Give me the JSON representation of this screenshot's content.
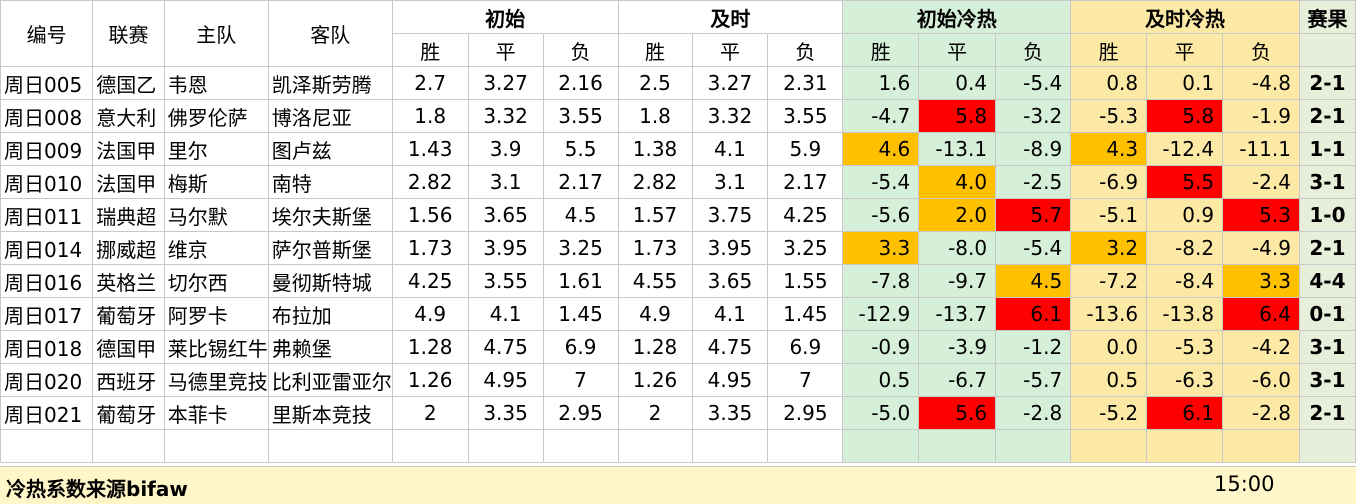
{
  "headers": {
    "id": "编号",
    "league": "联赛",
    "home": "主队",
    "away": "客队",
    "initial": "初始",
    "live": "及时",
    "initial_heat": "初始冷热",
    "live_heat": "及时冷热",
    "result": "赛果",
    "win": "胜",
    "draw": "平",
    "lose": "负"
  },
  "rows": [
    {
      "id": "周日005",
      "league": "德国乙",
      "home": "韦恩",
      "away": "凯泽斯劳腾",
      "i_w": "2.7",
      "i_d": "3.27",
      "i_l": "2.16",
      "l_w": "2.5",
      "l_d": "3.27",
      "l_l": "2.31",
      "ih_w": "1.6",
      "ih_d": "0.4",
      "ih_l": "-5.4",
      "lh_w": "0.8",
      "lh_d": "0.1",
      "lh_l": "-4.8",
      "result": "2-1"
    },
    {
      "id": "周日008",
      "league": "意大利",
      "home": "佛罗伦萨",
      "away": "博洛尼亚",
      "i_w": "1.8",
      "i_d": "3.32",
      "i_l": "3.55",
      "l_w": "1.8",
      "l_d": "3.32",
      "l_l": "3.55",
      "ih_w": "-4.7",
      "ih_d": "5.8",
      "ih_l": "-3.2",
      "lh_w": "-5.3",
      "lh_d": "5.8",
      "lh_l": "-1.9",
      "result": "2-1"
    },
    {
      "id": "周日009",
      "league": "法国甲",
      "home": "里尔",
      "away": "图卢兹",
      "i_w": "1.43",
      "i_d": "3.9",
      "i_l": "5.5",
      "l_w": "1.38",
      "l_d": "4.1",
      "l_l": "5.9",
      "ih_w": "4.6",
      "ih_d": "-13.1",
      "ih_l": "-8.9",
      "lh_w": "4.3",
      "lh_d": "-12.4",
      "lh_l": "-11.1",
      "result": "1-1"
    },
    {
      "id": "周日010",
      "league": "法国甲",
      "home": "梅斯",
      "away": "南特",
      "i_w": "2.82",
      "i_d": "3.1",
      "i_l": "2.17",
      "l_w": "2.82",
      "l_d": "3.1",
      "l_l": "2.17",
      "ih_w": "-5.4",
      "ih_d": "4.0",
      "ih_l": "-2.5",
      "lh_w": "-6.9",
      "lh_d": "5.5",
      "lh_l": "-2.4",
      "result": "3-1"
    },
    {
      "id": "周日011",
      "league": "瑞典超",
      "home": "马尔默",
      "away": "埃尔夫斯堡",
      "i_w": "1.56",
      "i_d": "3.65",
      "i_l": "4.5",
      "l_w": "1.57",
      "l_d": "3.75",
      "l_l": "4.25",
      "ih_w": "-5.6",
      "ih_d": "2.0",
      "ih_l": "5.7",
      "lh_w": "-5.1",
      "lh_d": "0.9",
      "lh_l": "5.3",
      "result": "1-0"
    },
    {
      "id": "周日014",
      "league": "挪威超",
      "home": "维京",
      "away": "萨尔普斯堡",
      "i_w": "1.73",
      "i_d": "3.95",
      "i_l": "3.25",
      "l_w": "1.73",
      "l_d": "3.95",
      "l_l": "3.25",
      "ih_w": "3.3",
      "ih_d": "-8.0",
      "ih_l": "-5.4",
      "lh_w": "3.2",
      "lh_d": "-8.2",
      "lh_l": "-4.9",
      "result": "2-1"
    },
    {
      "id": "周日016",
      "league": "英格兰",
      "home": "切尔西",
      "away": "曼彻斯特城",
      "i_w": "4.25",
      "i_d": "3.55",
      "i_l": "1.61",
      "l_w": "4.55",
      "l_d": "3.65",
      "l_l": "1.55",
      "ih_w": "-7.8",
      "ih_d": "-9.7",
      "ih_l": "4.5",
      "lh_w": "-7.2",
      "lh_d": "-8.4",
      "lh_l": "3.3",
      "result": "4-4"
    },
    {
      "id": "周日017",
      "league": "葡萄牙",
      "home": "阿罗卡",
      "away": "布拉加",
      "i_w": "4.9",
      "i_d": "4.1",
      "i_l": "1.45",
      "l_w": "4.9",
      "l_d": "4.1",
      "l_l": "1.45",
      "ih_w": "-12.9",
      "ih_d": "-13.7",
      "ih_l": "6.1",
      "lh_w": "-13.6",
      "lh_d": "-13.8",
      "lh_l": "6.4",
      "result": "0-1"
    },
    {
      "id": "周日018",
      "league": "德国甲",
      "home": "莱比锡红牛",
      "away": "弗赖堡",
      "i_w": "1.28",
      "i_d": "4.75",
      "i_l": "6.9",
      "l_w": "1.28",
      "l_d": "4.75",
      "l_l": "6.9",
      "ih_w": "-0.9",
      "ih_d": "-3.9",
      "ih_l": "-1.2",
      "lh_w": "0.0",
      "lh_d": "-5.3",
      "lh_l": "-4.2",
      "result": "3-1"
    },
    {
      "id": "周日020",
      "league": "西班牙",
      "home": "马德里竞技",
      "away": "比利亚雷亚尔",
      "i_w": "1.26",
      "i_d": "4.95",
      "i_l": "7",
      "l_w": "1.26",
      "l_d": "4.95",
      "l_l": "7",
      "ih_w": "0.5",
      "ih_d": "-6.7",
      "ih_l": "-5.7",
      "lh_w": "0.5",
      "lh_d": "-6.3",
      "lh_l": "-6.0",
      "result": "3-1"
    },
    {
      "id": "周日021",
      "league": "葡萄牙",
      "home": "本菲卡",
      "away": "里斯本竞技",
      "i_w": "2",
      "i_d": "3.35",
      "i_l": "2.95",
      "l_w": "2",
      "l_d": "3.35",
      "l_l": "2.95",
      "ih_w": "-5.0",
      "ih_d": "5.6",
      "ih_l": "-2.8",
      "lh_w": "-5.2",
      "lh_d": "6.1",
      "lh_l": "-2.8",
      "result": "2-1"
    }
  ],
  "highlights": {
    "hot_color": "#ff0000",
    "warm_color": "#ffc000",
    "initial_heat_bg": "#d6efd8",
    "live_heat_bg": "#fce9a6",
    "cells": {
      "1": {
        "ih_d": "hot",
        "lh_d": "hot"
      },
      "2": {
        "ih_w": "warm",
        "lh_w": "warm"
      },
      "3": {
        "ih_d": "warm",
        "lh_d": "hot"
      },
      "4": {
        "ih_d": "warm",
        "ih_l": "hot",
        "lh_l": "hot"
      },
      "5": {
        "ih_w": "warm",
        "lh_w": "warm"
      },
      "6": {
        "ih_l": "warm",
        "lh_l": "warm"
      },
      "7": {
        "ih_l": "hot",
        "lh_l": "hot"
      },
      "10": {
        "ih_d": "hot",
        "lh_d": "hot"
      }
    }
  },
  "footer": {
    "note": "冷热系数来源bifaw",
    "time": "15:00"
  }
}
